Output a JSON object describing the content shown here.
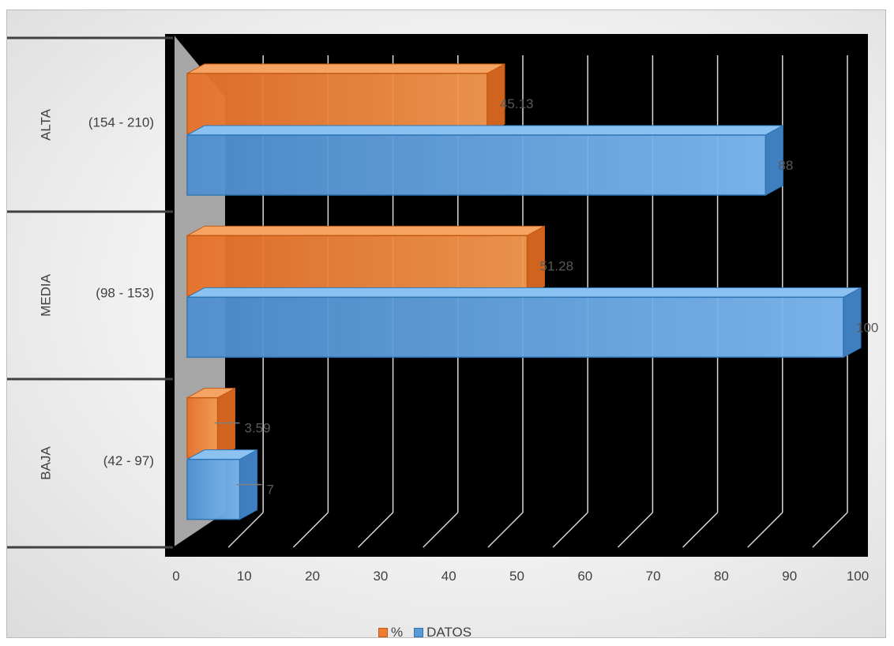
{
  "chart_data": {
    "type": "bar",
    "orientation": "horizontal",
    "style": "3d-clustered",
    "categories": [
      {
        "group": "ALTA",
        "range": "(154 - 210)"
      },
      {
        "group": "MEDIA",
        "range": "(98 - 153)"
      },
      {
        "group": "BAJA",
        "range": "(42 - 97)"
      }
    ],
    "series": [
      {
        "name": "%",
        "color": "#ED7D31",
        "values": [
          45.13,
          51.28,
          3.59
        ],
        "labels": [
          "45.13",
          "51.28",
          "3.59"
        ]
      },
      {
        "name": "DATOS",
        "color": "#5B9BD5",
        "values": [
          88,
          100,
          7
        ],
        "labels": [
          "88",
          "100",
          "7"
        ]
      }
    ],
    "xlim": [
      0,
      100
    ],
    "xticks": [
      "0",
      "10",
      "20",
      "30",
      "40",
      "50",
      "60",
      "70",
      "80",
      "90",
      "100"
    ],
    "grid": true,
    "legend_position": "bottom",
    "plot_background": "#000000"
  }
}
